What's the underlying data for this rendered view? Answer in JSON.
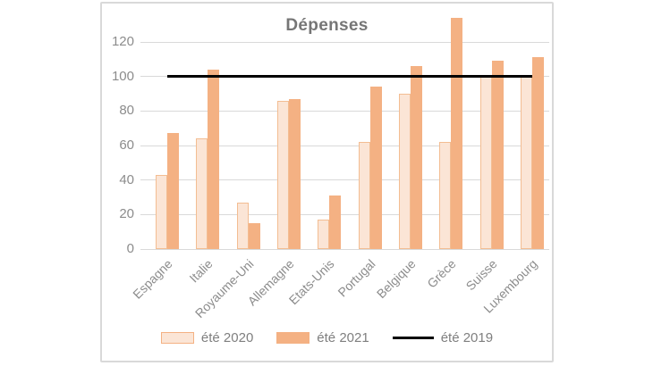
{
  "title": "Dépenses",
  "colors": {
    "serie_2020_fill": "#FBE5D6",
    "serie_2020_border": "#F4B183",
    "serie_2021_fill": "#F4B183",
    "serie_2019_line": "#000000",
    "gridline": "#D9D9D9",
    "axis_text": "#8C8C8C",
    "title_text": "#767676",
    "frame_border": "#D9D9D9"
  },
  "chart_data": {
    "type": "bar",
    "title": "Dépenses",
    "categories": [
      "Espagne",
      "Italie",
      "Royaume-Uni",
      "Allemagne",
      "Etats-Unis",
      "Portugal",
      "Belgique",
      "Grèce",
      "Suisse",
      "Luxembourg"
    ],
    "series": [
      {
        "name": "été 2020",
        "type": "bar",
        "values": [
          43,
          64,
          27,
          86,
          17,
          62,
          90,
          62,
          100,
          100
        ]
      },
      {
        "name": "été 2021",
        "type": "bar",
        "values": [
          67,
          104,
          15,
          87,
          31,
          94,
          106,
          134,
          109,
          111
        ]
      },
      {
        "name": "été 2019",
        "type": "line",
        "constant_value": 100
      }
    ],
    "y_ticks": [
      0,
      20,
      40,
      60,
      80,
      100,
      120
    ],
    "ylim": [
      0,
      140
    ],
    "xlabel": "",
    "ylabel": "",
    "grid": true,
    "legend_position": "bottom"
  },
  "legend": {
    "items": [
      {
        "label": "été 2020"
      },
      {
        "label": "été 2021"
      },
      {
        "label": "été 2019"
      }
    ]
  }
}
